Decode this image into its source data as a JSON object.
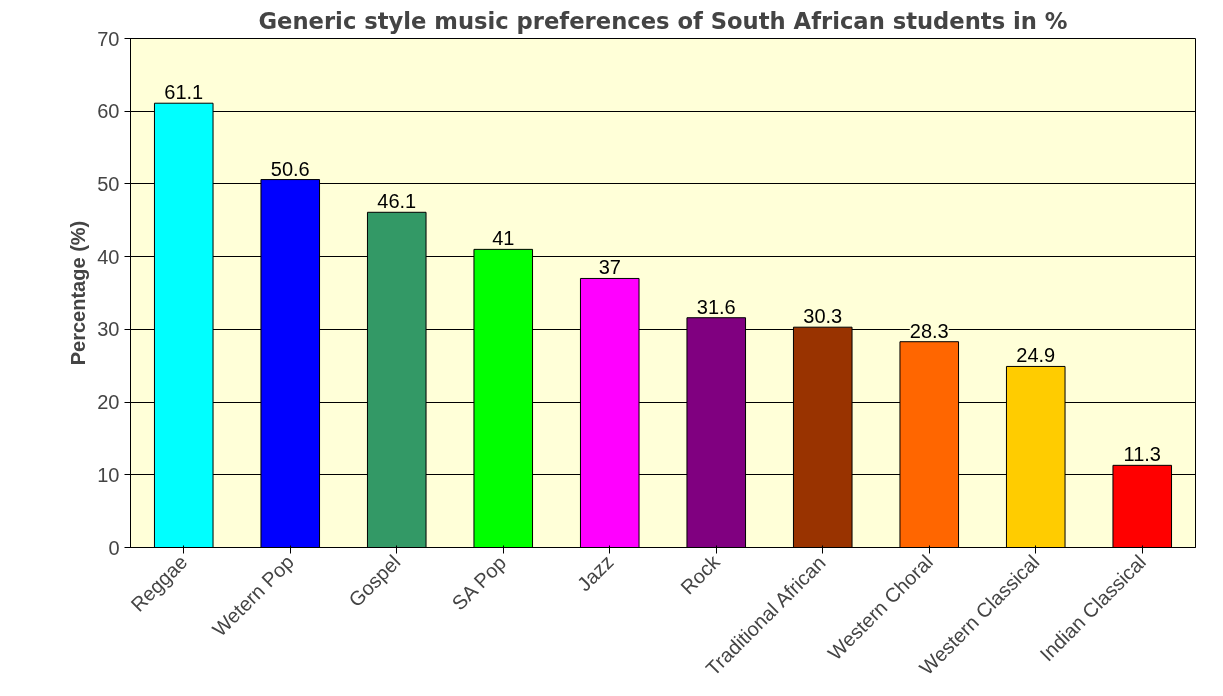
{
  "chart_data": {
    "type": "bar",
    "title": "Generic style music preferences of South African students in %",
    "ylabel": "Percentage (%)",
    "categories": [
      "Reggae",
      "Wetern Pop",
      "Gospel",
      "SA Pop",
      "Jazz",
      "Rock",
      "Traditional African",
      "Western Choral",
      "Western Classical",
      "Indian Classical"
    ],
    "values": [
      61.1,
      50.6,
      46.1,
      41,
      37,
      31.6,
      30.3,
      28.3,
      24.9,
      11.3
    ],
    "colors": [
      "#00ffff",
      "#0000ff",
      "#339966",
      "#00ff00",
      "#ff00ff",
      "#800080",
      "#993300",
      "#ff6600",
      "#ffcc00",
      "#ff0000"
    ],
    "ylim": [
      0,
      70
    ],
    "yticks": [
      0,
      10,
      20,
      30,
      40,
      50,
      60,
      70
    ],
    "grid": "y",
    "data_labels": true
  }
}
